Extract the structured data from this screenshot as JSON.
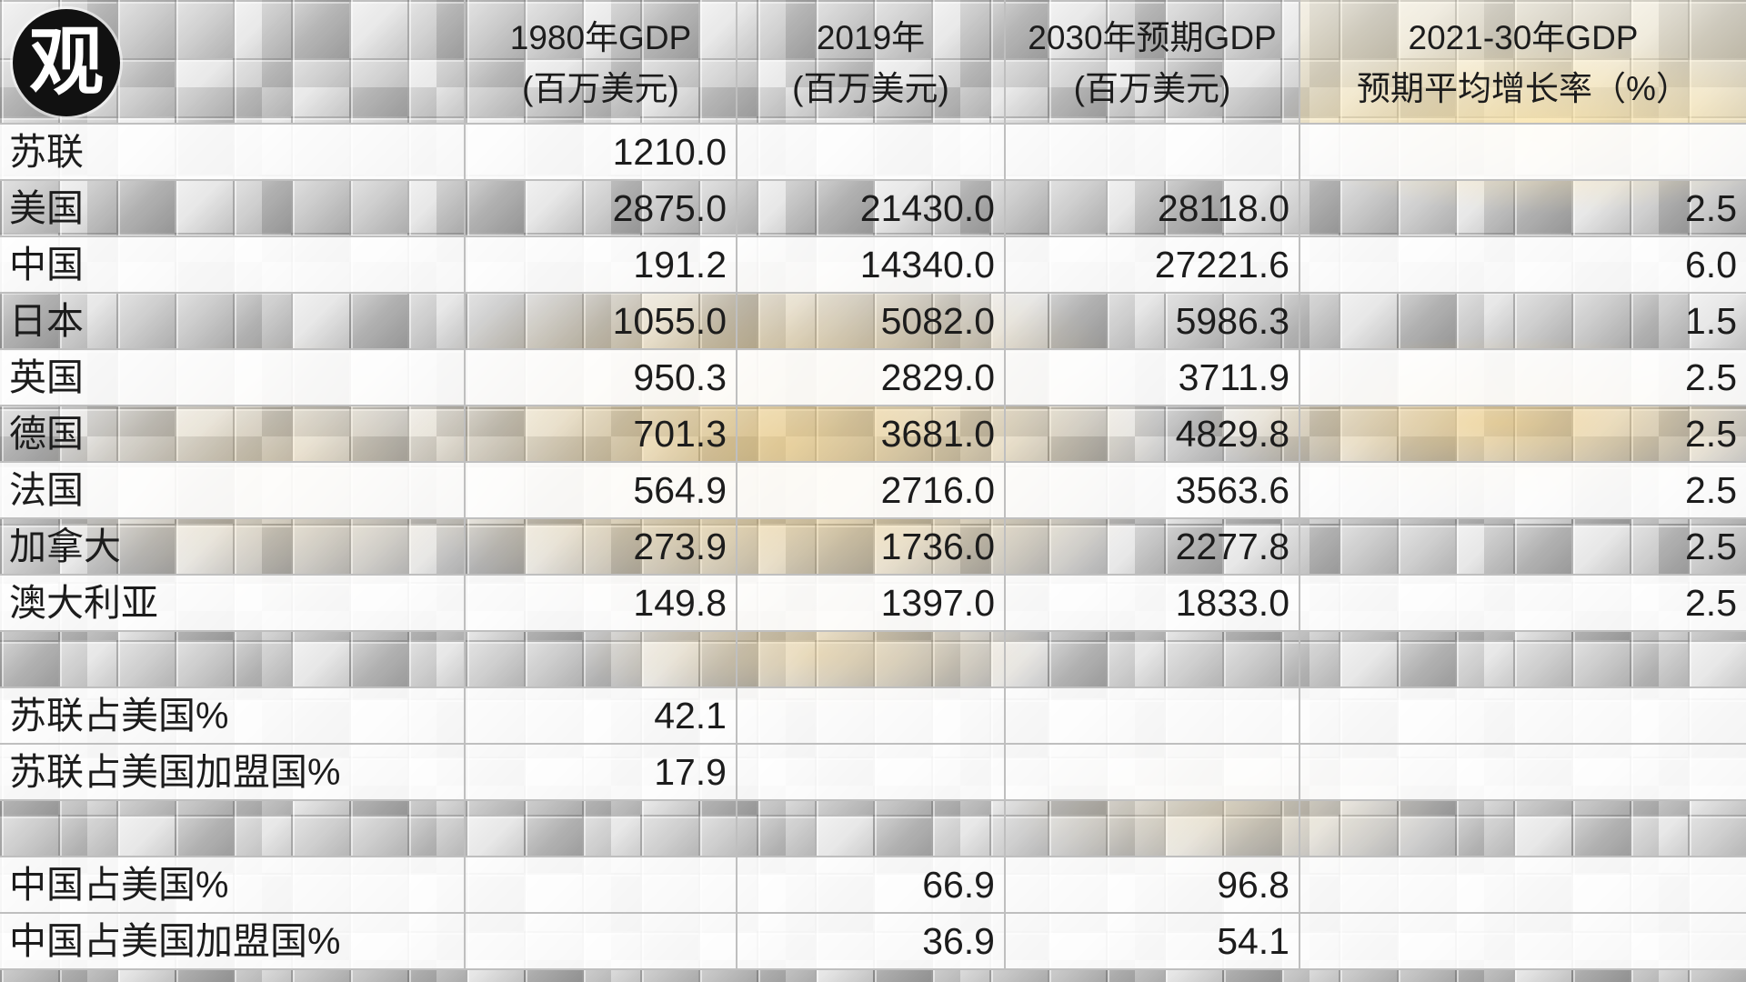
{
  "logo": {
    "text": "观"
  },
  "colors": {
    "text": "#1c1c1c",
    "grid_line": "#bfbfbf",
    "logo_background": "#111111",
    "gold_accent": "#eec468"
  },
  "chart_data": {
    "type": "table",
    "columns": [
      {
        "line1": "1980年GDP",
        "line2": "(百万美元)"
      },
      {
        "line1": "2019年",
        "line2": "(百万美元)"
      },
      {
        "line1": "2030年预期GDP",
        "line2": "(百万美元)"
      },
      {
        "line1": "2021-30年GDP",
        "line2": "预期平均增长率（%）"
      }
    ],
    "rows": [
      {
        "label": "苏联",
        "values": [
          "1210.0",
          "",
          "",
          ""
        ]
      },
      {
        "label": "美国",
        "values": [
          "2875.0",
          "21430.0",
          "28118.0",
          "2.5"
        ]
      },
      {
        "label": "中国",
        "values": [
          "191.2",
          "14340.0",
          "27221.6",
          "6.0"
        ]
      },
      {
        "label": "日本",
        "values": [
          "1055.0",
          "5082.0",
          "5986.3",
          "1.5"
        ]
      },
      {
        "label": "英国",
        "values": [
          "950.3",
          "2829.0",
          "3711.9",
          "2.5"
        ]
      },
      {
        "label": "德国",
        "values": [
          "701.3",
          "3681.0",
          "4829.8",
          "2.5"
        ]
      },
      {
        "label": "法国",
        "values": [
          "564.9",
          "2716.0",
          "3563.6",
          "2.5"
        ]
      },
      {
        "label": "加拿大",
        "values": [
          "273.9",
          "1736.0",
          "2277.8",
          "2.5"
        ]
      },
      {
        "label": "澳大利亚",
        "values": [
          "149.8",
          "1397.0",
          "1833.0",
          "2.5"
        ]
      },
      {
        "label": "",
        "values": [
          "",
          "",
          "",
          ""
        ]
      },
      {
        "label": "苏联占美国%",
        "values": [
          "42.1",
          "",
          "",
          ""
        ]
      },
      {
        "label": "苏联占美国加盟国%",
        "values": [
          "17.9",
          "",
          "",
          ""
        ]
      },
      {
        "label": "",
        "values": [
          "",
          "",
          "",
          ""
        ]
      },
      {
        "label": "中国占美国%",
        "values": [
          "",
          "66.9",
          "96.8",
          ""
        ]
      },
      {
        "label": "中国占美国加盟国%",
        "values": [
          "",
          "36.9",
          "54.1",
          ""
        ]
      }
    ]
  }
}
